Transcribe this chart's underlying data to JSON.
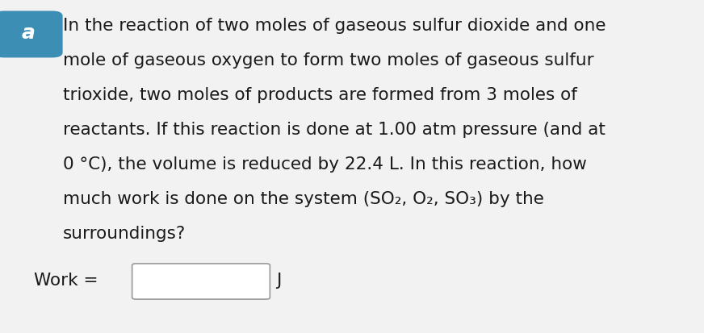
{
  "background_color": "#f2f2f2",
  "text_area_bg": "#ffffff",
  "badge_color": "#3d8eb5",
  "badge_letter": "a",
  "font_size": 15.5,
  "font_family": "DejaVu Sans",
  "text_lines": [
    "In the reaction of two moles of gaseous sulfur dioxide and one",
    "mole of gaseous oxygen to form two moles of gaseous sulfur",
    "trioxide, two moles of products are formed from 3 moles of",
    "reactants. If this reaction is done at 1.00 atm pressure (and at",
    "0 °C), the volume is reduced by 22.4 L. In this reaction, how",
    "surroundings?"
  ],
  "line6_plain_before": "much work is done on the system (",
  "line6_so2": "SO",
  "line6_sub2": "2",
  "line6_comma1": ", ",
  "line6_o2": "O",
  "line6_sub2b": "2",
  "line6_comma2": ", ",
  "line6_so3": "SO",
  "line6_sub3": "3",
  "line6_paren_end": ") by the",
  "work_label": "Work =",
  "j_label": "J",
  "badge_text_color": "#ffffff",
  "text_color": "#1a1a1a"
}
